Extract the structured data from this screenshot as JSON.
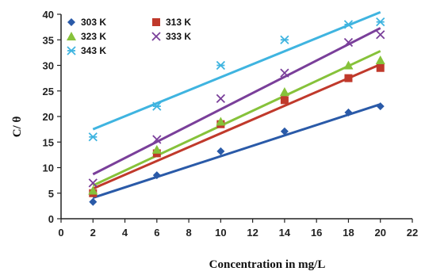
{
  "chart_data": {
    "type": "scatter",
    "xlabel": "Concentration in mg/L",
    "ylabel": "C/ θ",
    "xlim": [
      0,
      22
    ],
    "ylim": [
      0,
      40
    ],
    "xticks": [
      0,
      2,
      4,
      6,
      8,
      10,
      12,
      14,
      16,
      18,
      20,
      22
    ],
    "yticks": [
      0,
      5,
      10,
      15,
      20,
      25,
      30,
      35,
      40
    ],
    "grid": false,
    "legend_position": "top-left",
    "series": [
      {
        "name": "303 K",
        "marker": "diamond",
        "color": "#2a5aa8",
        "x": [
          2,
          6,
          10,
          14,
          18,
          20
        ],
        "y": [
          3.3,
          8.5,
          13.2,
          17.1,
          20.8,
          22.0
        ],
        "fit": [
          4.1,
          22.4
        ]
      },
      {
        "name": "313 K",
        "marker": "square",
        "color": "#c0392b",
        "x": [
          2,
          6,
          10,
          14,
          18,
          20
        ],
        "y": [
          5.0,
          12.8,
          18.5,
          23.2,
          27.5,
          29.5
        ],
        "fit": [
          5.9,
          30.2
        ]
      },
      {
        "name": "323 K",
        "marker": "triangle",
        "color": "#86c23a",
        "x": [
          2,
          6,
          10,
          14,
          18,
          20
        ],
        "y": [
          5.5,
          13.5,
          19.0,
          24.8,
          30.0,
          31.0
        ],
        "fit": [
          6.5,
          32.8
        ]
      },
      {
        "name": "333 K",
        "marker": "x",
        "color": "#7a3f9a",
        "x": [
          2,
          6,
          10,
          14,
          18,
          20
        ],
        "y": [
          7.0,
          15.5,
          23.5,
          28.5,
          34.5,
          36.0
        ],
        "fit": [
          8.7,
          37.3
        ]
      },
      {
        "name": "343 K",
        "marker": "asterisk",
        "color": "#3fb4e0",
        "x": [
          2,
          6,
          10,
          14,
          18,
          20
        ],
        "y": [
          16.0,
          22.0,
          30.0,
          35.0,
          38.0,
          38.5
        ],
        "fit": [
          17.5,
          40.4
        ]
      }
    ]
  }
}
